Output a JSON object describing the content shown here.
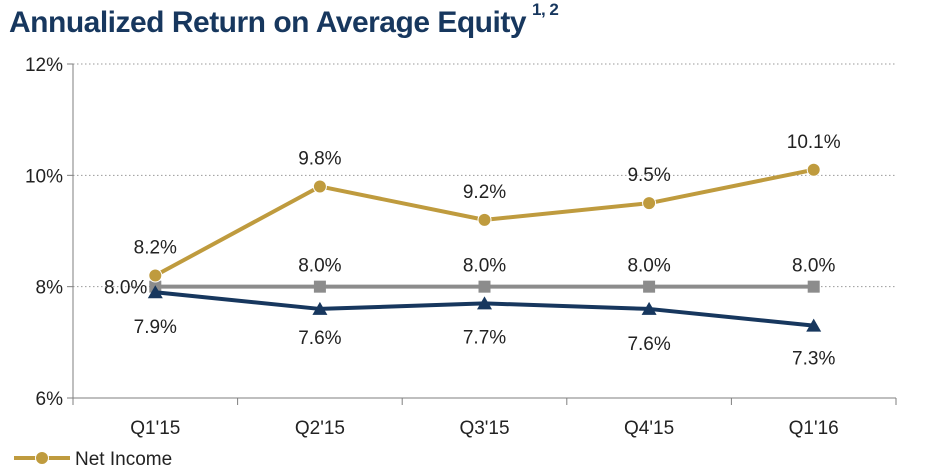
{
  "header": {
    "title": "Annualized Return on Average Equity",
    "footnote_marks": "1, 2"
  },
  "chart_data": {
    "type": "line",
    "title": "Annualized Return on Average Equity",
    "categories": [
      "Q1'15",
      "Q2'15",
      "Q3'15",
      "Q4'15",
      "Q1'16"
    ],
    "ylim": [
      6,
      12
    ],
    "yticks": [
      6,
      8,
      10,
      12
    ],
    "ytick_labels": [
      "6%",
      "8%",
      "10%",
      "12%"
    ],
    "grid": "horizontal dotted at 10% and 12%",
    "legend_position": "bottom-left",
    "series": [
      {
        "name": "Net Income",
        "marker": "circle",
        "color": "#bf9b3e",
        "values": [
          8.2,
          9.8,
          9.2,
          9.5,
          10.1
        ],
        "labels": [
          "8.2%",
          "9.8%",
          "9.2%",
          "9.5%",
          "10.1%"
        ]
      },
      {
        "marker": "square",
        "color": "#8c8c8c",
        "values": [
          8.0,
          8.0,
          8.0,
          8.0,
          8.0
        ],
        "labels": [
          "8.0%",
          "8.0%",
          "8.0%",
          "8.0%",
          "8.0%"
        ]
      },
      {
        "marker": "triangle",
        "color": "#17375e",
        "values": [
          7.9,
          7.6,
          7.7,
          7.6,
          7.3
        ],
        "labels": [
          "7.9%",
          "7.6%",
          "7.7%",
          "7.6%",
          "7.3%"
        ]
      }
    ]
  }
}
